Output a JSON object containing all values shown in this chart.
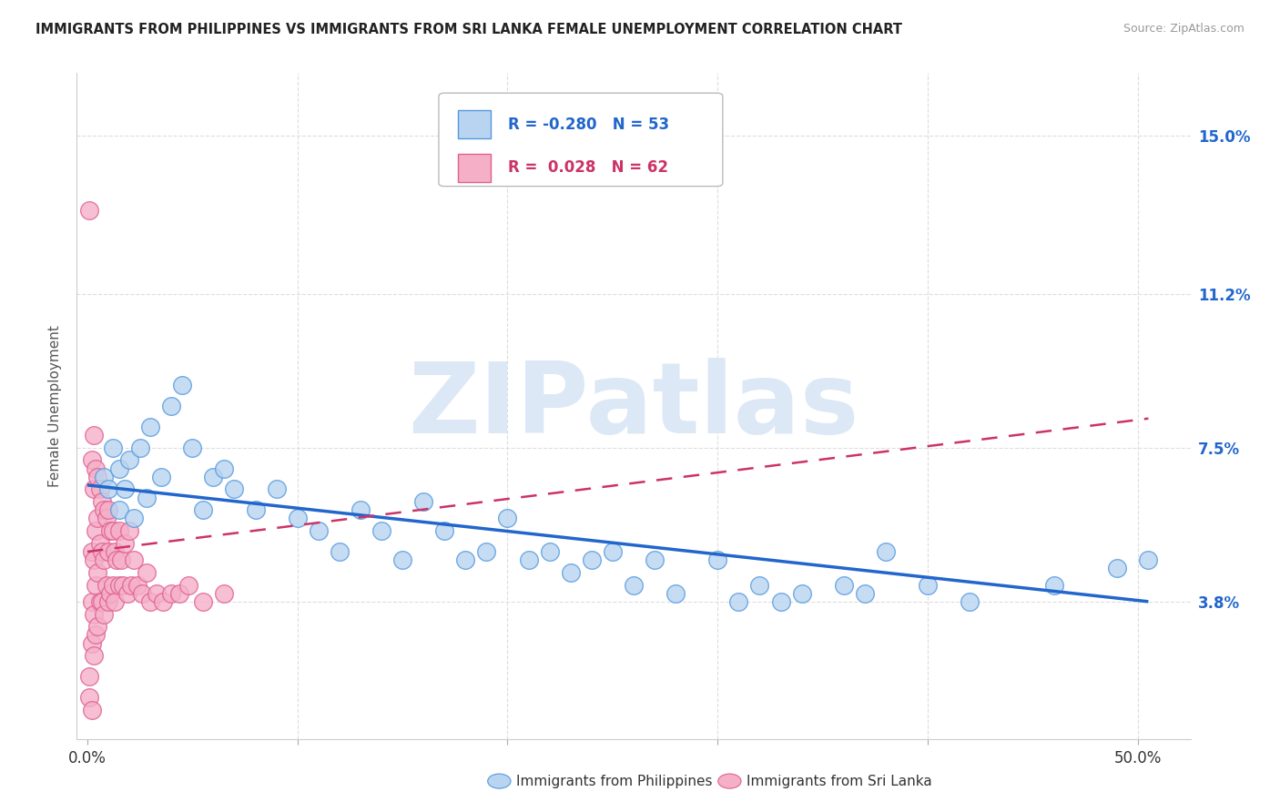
{
  "title": "IMMIGRANTS FROM PHILIPPINES VS IMMIGRANTS FROM SRI LANKA FEMALE UNEMPLOYMENT CORRELATION CHART",
  "source": "Source: ZipAtlas.com",
  "ylabel": "Female Unemployment",
  "ytick_labels": [
    "3.8%",
    "7.5%",
    "11.2%",
    "15.0%"
  ],
  "ytick_values": [
    0.038,
    0.075,
    0.112,
    0.15
  ],
  "ymin": 0.005,
  "ymax": 0.165,
  "xmin": -0.005,
  "xmax": 0.525,
  "series1_label": "Immigrants from Philippines",
  "series1_R": "-0.280",
  "series1_N": "53",
  "series1_color": "#b8d4f0",
  "series1_edge_color": "#5599dd",
  "series2_label": "Immigrants from Sri Lanka",
  "series2_R": "0.028",
  "series2_N": "62",
  "series2_color": "#f5b0c8",
  "series2_edge_color": "#e06090",
  "trend1_color": "#2266cc",
  "trend2_color": "#cc3366",
  "watermark_text": "ZIPatlas",
  "watermark_color": "#dce8f5",
  "background_color": "#ffffff",
  "grid_color": "#dddddd",
  "philippines_x": [
    0.008,
    0.01,
    0.012,
    0.015,
    0.015,
    0.018,
    0.02,
    0.022,
    0.025,
    0.028,
    0.03,
    0.035,
    0.04,
    0.045,
    0.05,
    0.055,
    0.06,
    0.065,
    0.07,
    0.08,
    0.09,
    0.1,
    0.11,
    0.12,
    0.13,
    0.14,
    0.15,
    0.16,
    0.17,
    0.18,
    0.19,
    0.2,
    0.21,
    0.22,
    0.23,
    0.24,
    0.25,
    0.26,
    0.27,
    0.28,
    0.3,
    0.31,
    0.32,
    0.33,
    0.34,
    0.36,
    0.37,
    0.38,
    0.4,
    0.42,
    0.46,
    0.49,
    0.505
  ],
  "philippines_y": [
    0.068,
    0.065,
    0.075,
    0.06,
    0.07,
    0.065,
    0.072,
    0.058,
    0.075,
    0.063,
    0.08,
    0.068,
    0.085,
    0.09,
    0.075,
    0.06,
    0.068,
    0.07,
    0.065,
    0.06,
    0.065,
    0.058,
    0.055,
    0.05,
    0.06,
    0.055,
    0.048,
    0.062,
    0.055,
    0.048,
    0.05,
    0.058,
    0.048,
    0.05,
    0.045,
    0.048,
    0.05,
    0.042,
    0.048,
    0.04,
    0.048,
    0.038,
    0.042,
    0.038,
    0.04,
    0.042,
    0.04,
    0.05,
    0.042,
    0.038,
    0.042,
    0.046,
    0.048
  ],
  "srilanka_x": [
    0.001,
    0.001,
    0.002,
    0.002,
    0.002,
    0.002,
    0.003,
    0.003,
    0.003,
    0.003,
    0.003,
    0.004,
    0.004,
    0.004,
    0.004,
    0.005,
    0.005,
    0.005,
    0.005,
    0.006,
    0.006,
    0.006,
    0.007,
    0.007,
    0.007,
    0.008,
    0.008,
    0.008,
    0.009,
    0.009,
    0.01,
    0.01,
    0.01,
    0.011,
    0.011,
    0.012,
    0.012,
    0.013,
    0.013,
    0.014,
    0.015,
    0.015,
    0.016,
    0.017,
    0.018,
    0.019,
    0.02,
    0.021,
    0.022,
    0.024,
    0.026,
    0.028,
    0.03,
    0.033,
    0.036,
    0.04,
    0.044,
    0.048,
    0.055,
    0.065,
    0.001,
    0.002
  ],
  "srilanka_y": [
    0.132,
    0.02,
    0.072,
    0.05,
    0.038,
    0.028,
    0.078,
    0.065,
    0.048,
    0.035,
    0.025,
    0.07,
    0.055,
    0.042,
    0.03,
    0.068,
    0.058,
    0.045,
    0.032,
    0.065,
    0.052,
    0.038,
    0.062,
    0.05,
    0.038,
    0.06,
    0.048,
    0.035,
    0.058,
    0.042,
    0.06,
    0.05,
    0.038,
    0.055,
    0.04,
    0.055,
    0.042,
    0.05,
    0.038,
    0.048,
    0.055,
    0.042,
    0.048,
    0.042,
    0.052,
    0.04,
    0.055,
    0.042,
    0.048,
    0.042,
    0.04,
    0.045,
    0.038,
    0.04,
    0.038,
    0.04,
    0.04,
    0.042,
    0.038,
    0.04,
    0.015,
    0.012
  ],
  "trend1_x0": 0.0,
  "trend1_x1": 0.505,
  "trend1_y0": 0.066,
  "trend1_y1": 0.038,
  "trend2_x0": 0.0,
  "trend2_x1": 0.505,
  "trend2_y0": 0.05,
  "trend2_y1": 0.082
}
